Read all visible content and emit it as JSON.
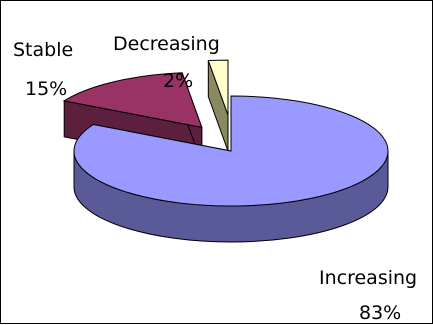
{
  "chart_data": {
    "type": "pie",
    "style": "3d-exploded",
    "categories": [
      "Increasing",
      "Stable",
      "Decreasing"
    ],
    "values": [
      83,
      15,
      2
    ],
    "value_labels": [
      "83%",
      "15%",
      "2%"
    ],
    "colors": {
      "Increasing": "#9999ff",
      "Stable": "#993366",
      "Decreasing": "#ffffcc"
    },
    "side_colors": {
      "Increasing": "#5a5a99",
      "Stable": "#5c1f3d",
      "Decreasing": "#8a8a60"
    },
    "legend": "none",
    "title": ""
  }
}
